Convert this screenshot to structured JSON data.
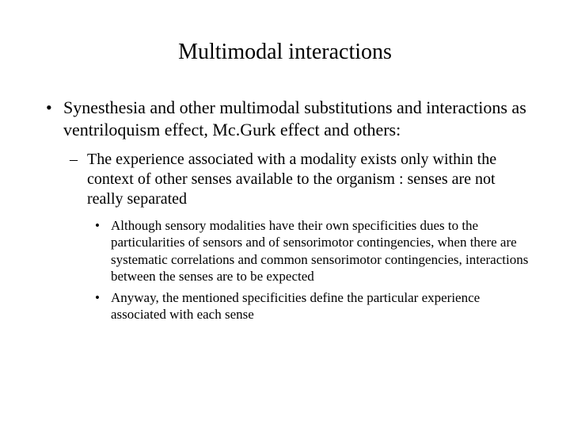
{
  "slide": {
    "title": "Multimodal interactions",
    "title_fontsize": 28,
    "background_color": "#ffffff",
    "text_color": "#000000",
    "font_family": "Times New Roman",
    "bullets": {
      "level1": [
        {
          "text": "Synesthesia and other multimodal substitutions and interactions as ventriloquism effect, Mc.Gurk effect and others:",
          "fontsize": 22
        }
      ],
      "level2": [
        {
          "text": "The experience associated with a modality exists only within the context of other senses available to the organism : senses are not really separated",
          "fontsize": 20
        }
      ],
      "level3": [
        {
          "text": "Although sensory modalities have their own specificities dues to the particularities of sensors and of sensorimotor contingencies, when there are systematic correlations and common sensorimotor contingencies, interactions between the senses are to be expected",
          "fontsize": 17
        },
        {
          "text": "Anyway, the mentioned specificities define the particular experience associated with each sense",
          "fontsize": 17
        }
      ]
    }
  }
}
